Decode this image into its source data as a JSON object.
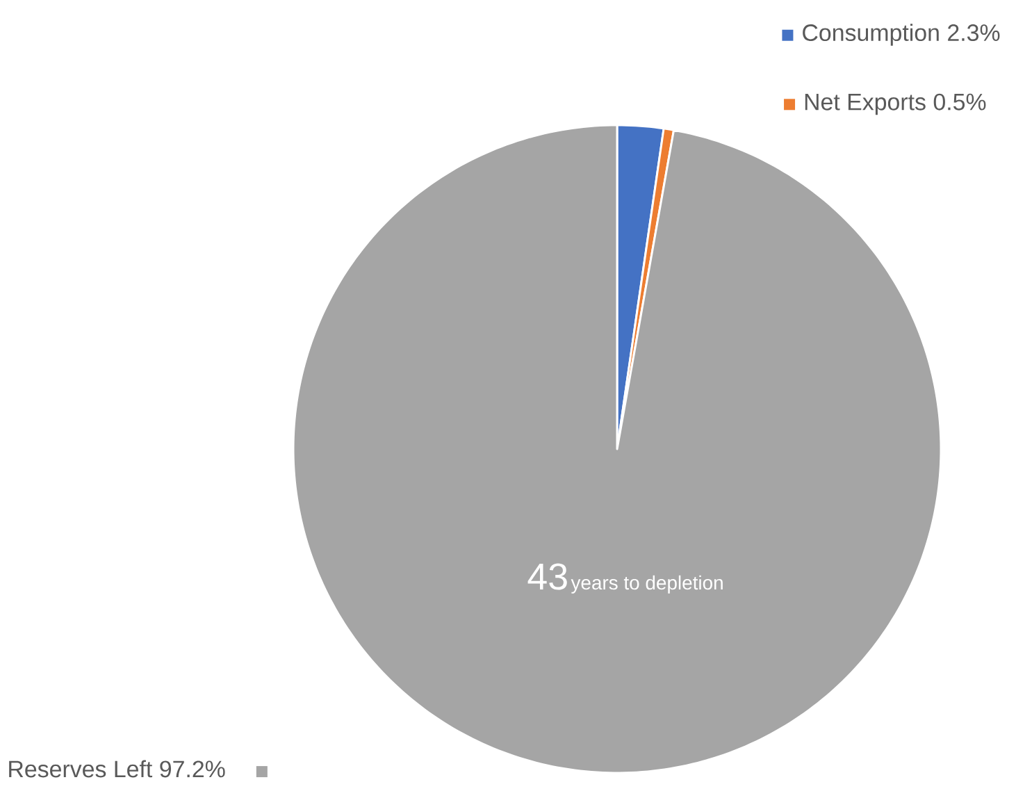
{
  "chart_data": {
    "type": "pie",
    "categories": [
      "Consumption",
      "Net Exports",
      "Reserves Left"
    ],
    "values": [
      2.3,
      0.5,
      97.2
    ],
    "colors": [
      "#4472c4",
      "#ed7d31",
      "#a5a5a5"
    ],
    "value_labels": [
      "2.3%",
      "0.5%",
      "97.2%"
    ],
    "legend": "top right",
    "annotations": [
      "43",
      "years to depletion"
    ]
  }
}
